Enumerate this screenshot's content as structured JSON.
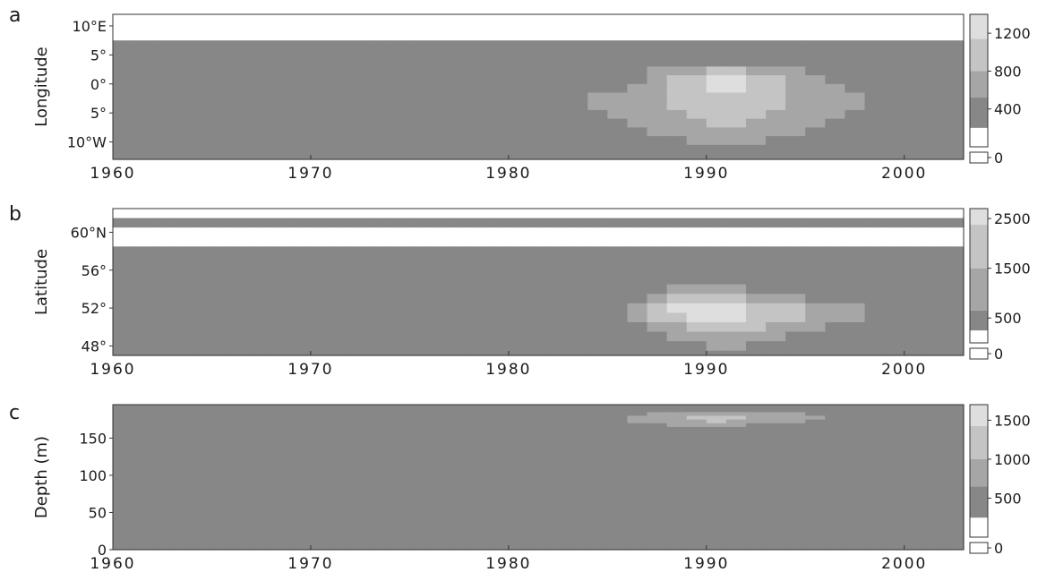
{
  "chart_data": [
    {
      "type": "heatmap",
      "panel_letter": "a",
      "ylabel": "Longitude",
      "x_ticks": [
        "1960",
        "1970",
        "1980",
        "1990",
        "2000"
      ],
      "x_tick_values": [
        1960,
        1970,
        1980,
        1990,
        2000
      ],
      "xlim": [
        1960,
        2003
      ],
      "y_ticks": [
        "10°E",
        "5°",
        "0°",
        "5°",
        "10°W"
      ],
      "y_tick_values": [
        10,
        5,
        0,
        -5,
        -10
      ],
      "ylim": [
        -13,
        12
      ],
      "y_cell": 1.5,
      "colorbar_ticks": [
        "1200",
        "800",
        "400",
        "0"
      ],
      "colorbar_values": [
        1200,
        800,
        400,
        0
      ],
      "colorbar_max": 1400,
      "colors": {
        "empty": "#ffffff",
        "low": "#878787",
        "mid": "#a6a6a6",
        "high": "#c4c4c4",
        "top": "#dedede"
      },
      "rows": [
        "0000000000000000000000000000000000000000000",
        "0000000000000000000000000000000000000000000",
        "0000000000000000000000000000000000000000000",
        "1111111111111111111111111111111111111111111",
        "1111111111111111111111111111111111111111111",
        "1111111111111111111111111111111111111111111",
        "1111111111111111111111111112223322211111111",
        "1111111111111111111111111112334433221111111",
        "1111111111111111111111111122334433222111111",
        "1111111111111111111111112222333333222211111",
        "1111111111111111111111112222333333222211111",
        "1111111111111111111111111222233332222111111",
        "1111111111111111111111111122223322221111111",
        "1111111111111111111111111112222222211111111",
        "1111111111111111111111111111122221111111111",
        "1111111111111111111111111111111111111111111",
        "1111111111111111111111111111111111111111111"
      ]
    },
    {
      "type": "heatmap",
      "panel_letter": "b",
      "ylabel": "Latitude",
      "x_ticks": [
        "1960",
        "1970",
        "1980",
        "1990",
        "2000"
      ],
      "x_tick_values": [
        1960,
        1970,
        1980,
        1990,
        2000
      ],
      "xlim": [
        1960,
        2003
      ],
      "y_ticks": [
        "60°N",
        "56°",
        "52°",
        "48°"
      ],
      "y_tick_values": [
        60,
        56,
        52,
        48
      ],
      "ylim": [
        47,
        62.5
      ],
      "y_cell": 1,
      "colorbar_ticks": [
        "2500",
        "1500",
        "500",
        "0"
      ],
      "colorbar_values": [
        2500,
        1500,
        500,
        0
      ],
      "colorbar_max": 2700,
      "colors": {
        "empty": "#ffffff",
        "low": "#878787",
        "mid": "#a6a6a6",
        "high": "#c4c4c4",
        "top": "#dedede"
      },
      "rows": [
        "0000000000000000000000000000000000000000000",
        "1111111111111111111111111111111111111111111",
        "0000000000000000000000000000000000000000000",
        "0000000000000000000000000000000000000000000",
        "1111111111111111111111111111111111111111111",
        "1111111111111111111111111111111111111111111",
        "1111111111111111111111111111111111111111111",
        "1111111111111111111111111111111111111111111",
        "1111111111111111111111111111222211111111111",
        "1111111111111111111111111112333322211111111",
        "1111111111111111111111111123444433322211111",
        "1111111111111111111111111123344433322211111",
        "1111111111111111111111111112233332221111111",
        "1111111111111111111111111111222222111111111",
        "1111111111111111111111111111112211111111111",
        "1111111111111111111111111111111111111111111"
      ]
    },
    {
      "type": "heatmap",
      "panel_letter": "c",
      "ylabel": "Depth (m)",
      "x_ticks": [
        "1960",
        "1970",
        "1980",
        "1990",
        "2000"
      ],
      "x_tick_values": [
        1960,
        1970,
        1980,
        1990,
        2000
      ],
      "xlim": [
        1960,
        2003
      ],
      "y_ticks": [
        "150",
        "100",
        "50",
        "0"
      ],
      "y_tick_values": [
        150,
        100,
        50,
        0
      ],
      "ylim": [
        0,
        195
      ],
      "y_cell": 5,
      "colorbar_ticks": [
        "1500",
        "1000",
        "500",
        "0"
      ],
      "colorbar_values": [
        1500,
        1000,
        500,
        0
      ],
      "colorbar_max": 1700,
      "colors": {
        "empty": "#ffffff",
        "low": "#878787",
        "mid": "#a6a6a6",
        "high": "#c4c4c4",
        "top": "#dedede"
      },
      "rows": [
        "1111111111111111111111111111111111111111111",
        "1111111111111111111111111111111111111111111",
        "1111111111111111111111111112222222211111111",
        "1111111111111111111111111122233322221111111",
        "1111111111111111111111111122223222211111111",
        "1111111111111111111111111111222211111111111",
        "1111111111111111111111111111111111111111111",
        "1111111111111111111111111111111111111111111",
        "1111111111111111111111111111111111111111111",
        "1111111111111111111111111111111111111111111",
        "1111111111111111111111111111111111111111111",
        "1111111111111111111111111111111111111111111",
        "1111111111111111111111111111111111111111111",
        "1111111111111111111111111111111111111111111",
        "1111111111111111111111111111111111111111111",
        "1111111111111111111111111111111111111111111",
        "1111111111111111111111111111111111111111111",
        "1111111111111111111111111111111111111111111",
        "1111111111111111111111111111111111111111111",
        "1111111111111111111111111111111111111111111",
        "1111111111111111111111111111111111111111111",
        "1111111111111111111111111111111111111111111",
        "1111111111111111111111111111111111111111111",
        "1111111111111111111111111111111111111111111",
        "1111111111111111111111111111111111111111111",
        "1111111111111111111111111111111111111111111",
        "1111111111111111111111111111111111111111111",
        "1111111111111111111111111111111111111111111",
        "1111111111111111111111111111111111111111111",
        "1111111111111111111111111111111111111111111",
        "1111111111111111111111111111111111111111111",
        "1111111111111111111111111111111111111111111",
        "1111111111111111111111111111111111111111111",
        "1111111111111111111111111111111111111111111",
        "1111111111111111111111111111111111111111111",
        "1111111111111111111111111111111111111111111",
        "1111111111111111111111111111111111111111111",
        "1111111111111111111111111111111111111111111",
        "1111111111111111111111111111111111111111111"
      ]
    }
  ]
}
